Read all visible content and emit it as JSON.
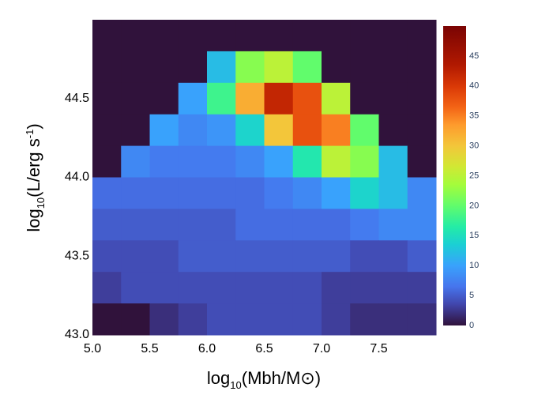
{
  "chart_data": {
    "type": "heatmap",
    "xlabel": {
      "main": "log",
      "sub": "10",
      "rest": "(Mbh/M⊙)"
    },
    "ylabel": {
      "main": "log",
      "sub": "10",
      "rest": "(L/erg s",
      "sup": "-1",
      "end": ")"
    },
    "x": [
      5.125,
      5.375,
      5.625,
      5.875,
      6.125,
      6.375,
      6.625,
      6.875,
      7.125,
      7.375,
      7.625,
      7.875
    ],
    "y": [
      44.9,
      44.7,
      44.5,
      44.3,
      44.1,
      43.9,
      43.7,
      43.5,
      43.3,
      43.1
    ],
    "z": [
      [
        0,
        0,
        0,
        0,
        0,
        0,
        0,
        0,
        0,
        0,
        0,
        0
      ],
      [
        0,
        0,
        0,
        0,
        12,
        22,
        25,
        20,
        0,
        0,
        0,
        0
      ],
      [
        0,
        0,
        0,
        10,
        18,
        32,
        42,
        38,
        25,
        0,
        0,
        0
      ],
      [
        0,
        0,
        10,
        8,
        9,
        14,
        30,
        38,
        35,
        20,
        0,
        0
      ],
      [
        0,
        8,
        7,
        7,
        7,
        8,
        10,
        16,
        25,
        22,
        12,
        0
      ],
      [
        6,
        6,
        6,
        6,
        6,
        6,
        7,
        8,
        10,
        14,
        12,
        8
      ],
      [
        5,
        5,
        5,
        5,
        5,
        6,
        6,
        6,
        6,
        7,
        8,
        8
      ],
      [
        4,
        4,
        4,
        5,
        5,
        5,
        5,
        5,
        5,
        4,
        4,
        5
      ],
      [
        3,
        4,
        4,
        4,
        4,
        4,
        4,
        4,
        3,
        3,
        3,
        3
      ],
      [
        0,
        0,
        2,
        3,
        4,
        4,
        4,
        4,
        3,
        2,
        2,
        2
      ]
    ],
    "xlim": [
      5,
      8
    ],
    "ylim": [
      43,
      45
    ],
    "xticks": [
      {
        "value": 5,
        "label": "5.0"
      },
      {
        "value": 5.5,
        "label": "5.5"
      },
      {
        "value": 6,
        "label": "6.0"
      },
      {
        "value": 6.5,
        "label": "6.5"
      },
      {
        "value": 7,
        "label": "7.0"
      },
      {
        "value": 7.5,
        "label": "7.5"
      }
    ],
    "yticks": [
      {
        "value": 43,
        "label": "43.0"
      },
      {
        "value": 43.5,
        "label": "43.5"
      },
      {
        "value": 44,
        "label": "44.0"
      },
      {
        "value": 44.5,
        "label": "44.5"
      }
    ],
    "clim": [
      0,
      50
    ],
    "cticks": [
      0,
      5,
      10,
      15,
      20,
      25,
      30,
      35,
      40,
      45
    ],
    "colorscale": [
      [
        0,
        "#30123b"
      ],
      [
        0.07,
        "#4145ab"
      ],
      [
        0.13,
        "#4675ed"
      ],
      [
        0.2,
        "#39a2fc"
      ],
      [
        0.27,
        "#1bcfd4"
      ],
      [
        0.33,
        "#24eca6"
      ],
      [
        0.4,
        "#61fc6c"
      ],
      [
        0.47,
        "#a4fc3b"
      ],
      [
        0.53,
        "#d1e834"
      ],
      [
        0.6,
        "#f3c63a"
      ],
      [
        0.67,
        "#fe9b2d"
      ],
      [
        0.73,
        "#f36315"
      ],
      [
        0.8,
        "#d93806"
      ],
      [
        0.87,
        "#b11901"
      ],
      [
        1,
        "#7a0403"
      ]
    ]
  }
}
